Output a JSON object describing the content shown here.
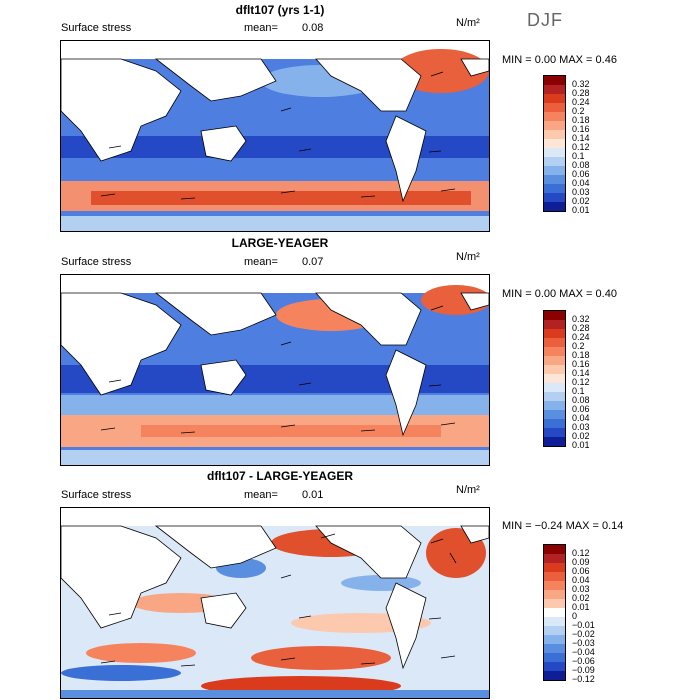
{
  "season": "DJF",
  "panels": [
    {
      "title": "dflt107 (yrs 1-1)",
      "variable": "Surface stress",
      "mean_label": "mean=",
      "mean_value": "0.08",
      "units": "N/m²",
      "minmax": "MIN =    0.00 MAX =    0.46",
      "colorbar_labels": [
        "0.32",
        "0.28",
        "0.24",
        "0.2",
        "0.18",
        "0.16",
        "0.14",
        "0.12",
        "0.1",
        "0.08",
        "0.06",
        "0.04",
        "0.03",
        "0.02",
        "0.01"
      ],
      "colorbar_colors": [
        "#8b0000",
        "#b22222",
        "#d93b1c",
        "#ec5f3c",
        "#f5845e",
        "#f9a684",
        "#fcc8ae",
        "#fde6d8",
        "#dbe8f7",
        "#b3d0f2",
        "#86b2eb",
        "#5a8fe0",
        "#3a6fd6",
        "#2548c4",
        "#0f1e96"
      ]
    },
    {
      "title": "LARGE-YEAGER",
      "variable": "Surface stress",
      "mean_label": "mean=",
      "mean_value": "0.07",
      "units": "N/m²",
      "minmax": "MIN =    0.00 MAX =    0.40",
      "colorbar_labels": [
        "0.32",
        "0.28",
        "0.24",
        "0.2",
        "0.18",
        "0.16",
        "0.14",
        "0.12",
        "0.1",
        "0.08",
        "0.06",
        "0.04",
        "0.03",
        "0.02",
        "0.01"
      ],
      "colorbar_colors": [
        "#8b0000",
        "#b22222",
        "#d93b1c",
        "#ec5f3c",
        "#f5845e",
        "#f9a684",
        "#fcc8ae",
        "#fde6d8",
        "#dbe8f7",
        "#b3d0f2",
        "#86b2eb",
        "#5a8fe0",
        "#3a6fd6",
        "#2548c4",
        "#0f1e96"
      ]
    },
    {
      "title": "dflt107 - LARGE-YEAGER",
      "variable": "Surface stress",
      "mean_label": "mean=",
      "mean_value": "0.01",
      "units": "N/m²",
      "minmax": "MIN =  −0.24 MAX =    0.14",
      "colorbar_labels": [
        "0.12",
        "0.09",
        "0.06",
        "0.04",
        "0.03",
        "0.02",
        "0.01",
        "0",
        "−0.01",
        "−0.02",
        "−0.03",
        "−0.04",
        "−0.06",
        "−0.09",
        "−0.12"
      ],
      "colorbar_colors": [
        "#8b0000",
        "#b22222",
        "#d93b1c",
        "#ec5f3c",
        "#f5845e",
        "#f9a684",
        "#fcc8ae",
        "#ffffff",
        "#dbe8f7",
        "#b3d0f2",
        "#86b2eb",
        "#5a8fe0",
        "#3a6fd6",
        "#2548c4",
        "#0f1e96"
      ]
    }
  ]
}
